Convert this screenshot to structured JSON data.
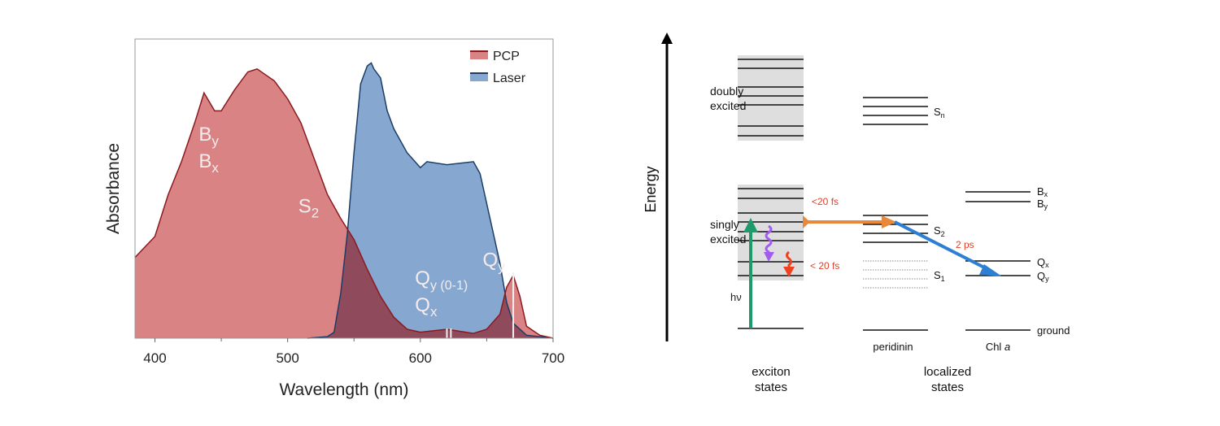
{
  "chart_data": {
    "type": "area",
    "title": "",
    "xlabel": "Wavelength (nm)",
    "ylabel": "Absorbance",
    "xlim": [
      385,
      700
    ],
    "ylim": [
      0,
      1
    ],
    "xticks": [
      400,
      500,
      600,
      700
    ],
    "grid": false,
    "legend_position": "top-right",
    "series": [
      {
        "name": "PCP",
        "color": "#d98384",
        "line": "#8b1a1f",
        "x": [
          385,
          400,
          410,
          420,
          430,
          437,
          445,
          450,
          460,
          470,
          477,
          490,
          500,
          510,
          520,
          530,
          540,
          550,
          560,
          570,
          580,
          590,
          600,
          620,
          640,
          650,
          660,
          665,
          670,
          675,
          680,
          690,
          700
        ],
        "y": [
          0.27,
          0.34,
          0.48,
          0.59,
          0.72,
          0.82,
          0.76,
          0.76,
          0.83,
          0.89,
          0.9,
          0.86,
          0.8,
          0.72,
          0.6,
          0.48,
          0.4,
          0.33,
          0.23,
          0.14,
          0.07,
          0.03,
          0.02,
          0.03,
          0.016,
          0.03,
          0.08,
          0.17,
          0.21,
          0.14,
          0.04,
          0.01,
          0.0
        ]
      },
      {
        "name": "Laser",
        "color": "#86a8d0",
        "line": "#1c3d66",
        "x": [
          515,
          530,
          535,
          540,
          545,
          550,
          555,
          560,
          563,
          565,
          570,
          575,
          580,
          590,
          600,
          605,
          620,
          640,
          645,
          650,
          660,
          665,
          670,
          680,
          700
        ],
        "y": [
          0,
          0.005,
          0.02,
          0.15,
          0.35,
          0.62,
          0.85,
          0.91,
          0.92,
          0.9,
          0.87,
          0.76,
          0.7,
          0.62,
          0.57,
          0.59,
          0.58,
          0.59,
          0.55,
          0.45,
          0.25,
          0.12,
          0.05,
          0.01,
          0
        ]
      }
    ],
    "overlap_color": "#8f4a5c",
    "markers": [
      620,
      623,
      670
    ],
    "annotations": [
      {
        "base": "B",
        "sub": "y",
        "x": 433,
        "y": 0.66
      },
      {
        "base": "B",
        "sub": "x",
        "x": 433,
        "y": 0.57
      },
      {
        "base": "S",
        "sub": "2",
        "x": 508,
        "y": 0.42
      },
      {
        "base": "Q",
        "sub": "y (0-1)",
        "x": 596,
        "y": 0.18
      },
      {
        "base": "Q",
        "sub": "x",
        "x": 596,
        "y": 0.09
      },
      {
        "base": "Q",
        "sub": "y",
        "x": 647,
        "y": 0.24
      }
    ]
  },
  "diagram": {
    "axis_label": "Energy",
    "doubly_excited": [
      "doubly",
      "excited"
    ],
    "singly_excited": [
      "singly",
      "excited"
    ],
    "hv": "hν",
    "transfer_time_1": "<20 fs",
    "relax_time": "< 20 fs",
    "transfer_time_2": "2 ps",
    "peridinin_levels": {
      "sn": "S",
      "sn_sub": "n",
      "s2": "S",
      "s2_sub": "2",
      "s1": "S",
      "s1_sub": "1"
    },
    "chl_levels": {
      "bx": "B",
      "bx_sub": "x",
      "by": "B",
      "by_sub": "y",
      "qx": "Q",
      "qx_sub": "x",
      "qy": "Q",
      "qy_sub": "y",
      "ground": "ground"
    },
    "peridinin": "peridinin",
    "chl": "Chl",
    "chl_italic": "a",
    "exciton": [
      "exciton",
      "states"
    ],
    "localized": [
      "localized",
      "states"
    ],
    "colors": {
      "green": "#1f9a6a",
      "orange": "#e8883a",
      "blue": "#2d7fd4",
      "purple": "#a35cf0",
      "red": "#f0401e",
      "timeLabel": "#e0402a"
    }
  }
}
